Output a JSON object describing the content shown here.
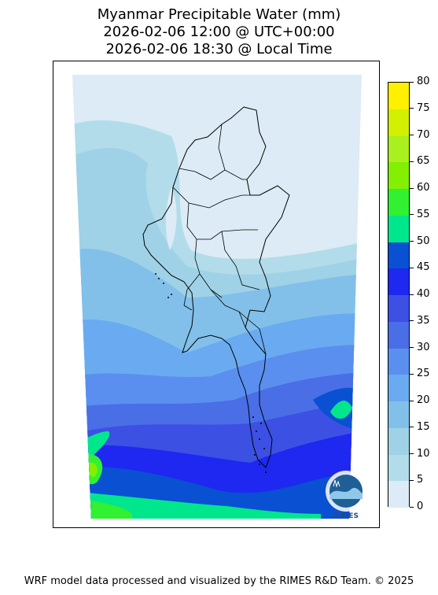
{
  "title": {
    "line1": "Myanmar Precipitable Water (mm)",
    "line2": "2026-02-06 12:00 @ UTC+00:00",
    "line3": "2026-02-06 18:30 @ Local Time"
  },
  "colorbar": {
    "levels": [
      0,
      5,
      10,
      15,
      20,
      25,
      30,
      35,
      40,
      45,
      50,
      55,
      60,
      65,
      70,
      75,
      80
    ],
    "tick_labels": [
      "0",
      "5",
      "10",
      "15",
      "20",
      "25",
      "30",
      "35",
      "40",
      "45",
      "50",
      "55",
      "60",
      "65",
      "70",
      "75",
      "80"
    ],
    "colors": [
      "#dcebf5",
      "#b2dcea",
      "#9fd2e6",
      "#82c0ea",
      "#6aaaf0",
      "#5a8ff0",
      "#4a6ee6",
      "#3c50e4",
      "#1e28f0",
      "#0a50d2",
      "#00e68c",
      "#32f032",
      "#82f000",
      "#aaf01e",
      "#d2f000",
      "#fff000",
      "#ffc800"
    ]
  },
  "logo": {
    "text": "RIMES",
    "icon": "rimes-logo-icon"
  },
  "footer": "WRF model data processed and visualized by the RIMES R&D Team. © 2025"
}
